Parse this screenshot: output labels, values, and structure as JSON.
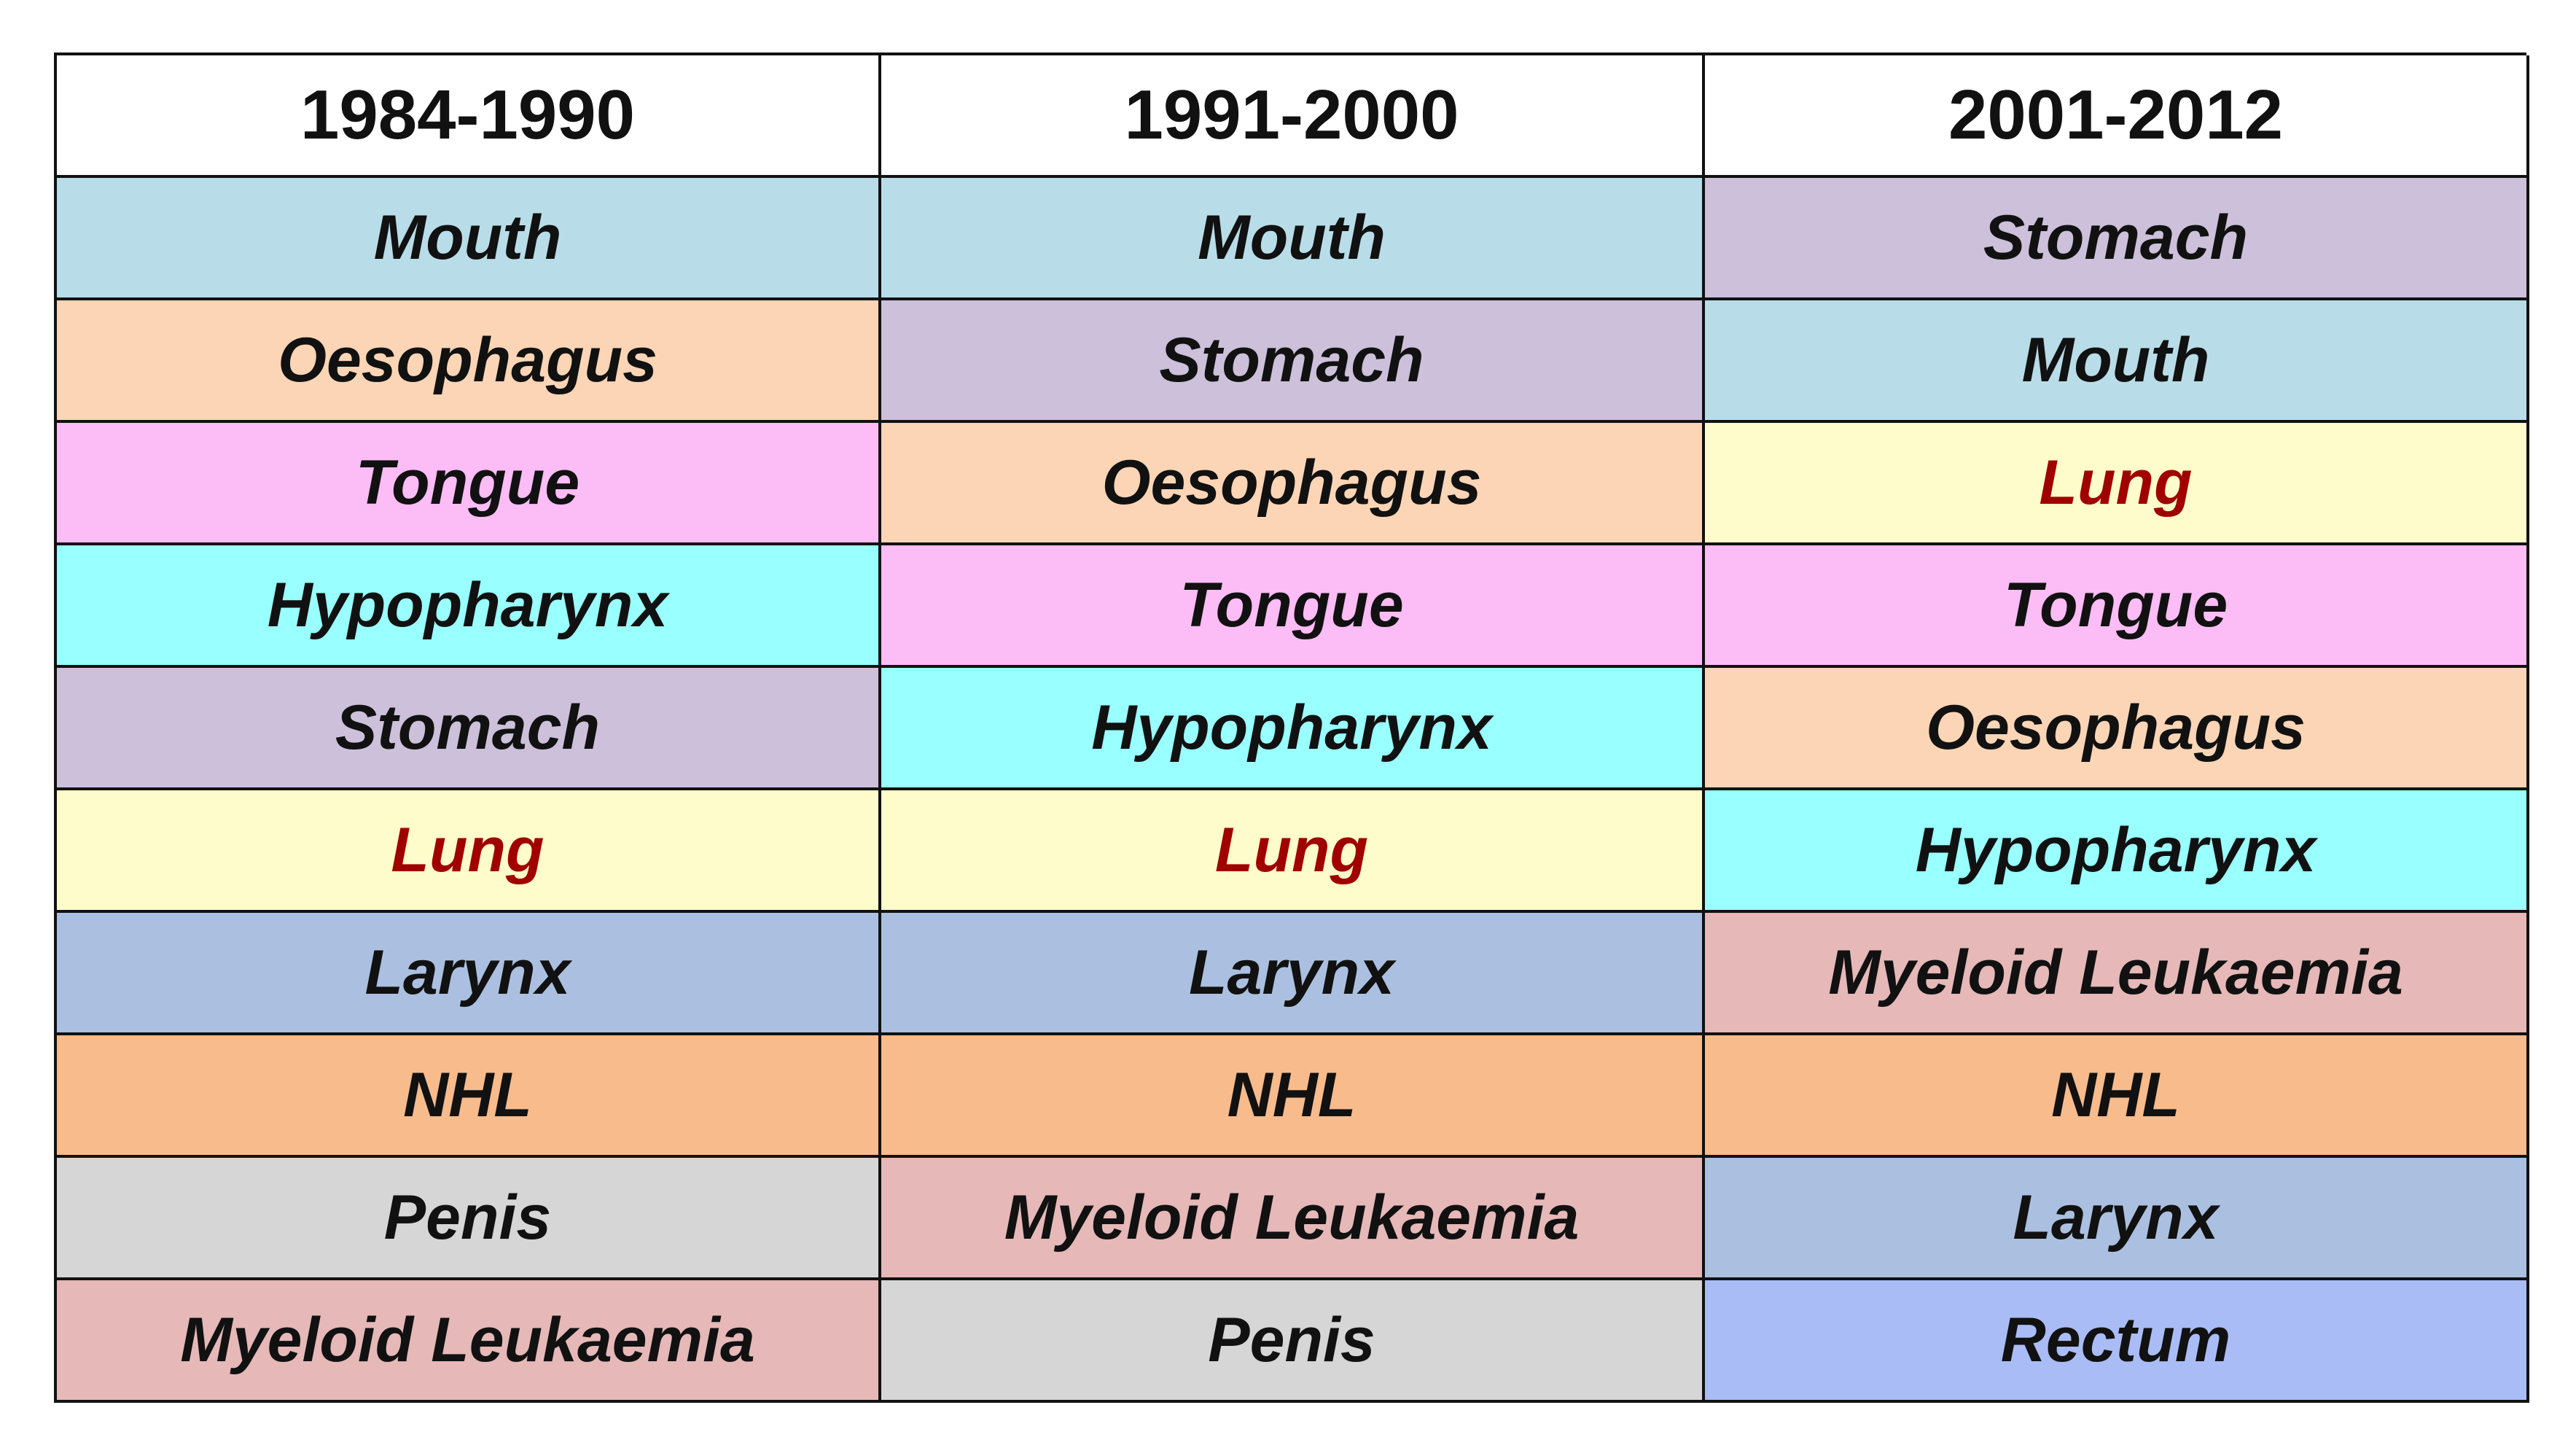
{
  "table": {
    "headers": [
      "1984-1990",
      "1991-2000",
      "2001-2012"
    ],
    "rows": [
      [
        "Mouth",
        "Mouth",
        "Stomach"
      ],
      [
        "Oesophagus",
        "Stomach",
        "Mouth"
      ],
      [
        "Tongue",
        "Oesophagus",
        "Lung"
      ],
      [
        "Hypopharynx",
        "Tongue",
        "Tongue"
      ],
      [
        "Stomach",
        "Hypopharynx",
        "Oesophagus"
      ],
      [
        "Lung",
        "Lung",
        "Hypopharynx"
      ],
      [
        "Larynx",
        "Larynx",
        "Myeloid Leukaemia"
      ],
      [
        "NHL",
        "NHL",
        "NHL"
      ],
      [
        "Penis",
        "Myeloid Leukaemia",
        "Larynx"
      ],
      [
        "Myeloid Leukaemia",
        "Penis",
        "Rectum"
      ]
    ]
  },
  "colors": {
    "Mouth": "#b8dde8",
    "Oesophagus": "#fbd5b5",
    "Tongue": "#fcbcf5",
    "Hypopharynx": "#99ffff",
    "Stomach": "#ccc0da",
    "Lung": "#fdfcca",
    "Larynx": "#abc0e0",
    "NHL": "#f7bb8c",
    "Penis": "#d6d6d6",
    "Myeloid Leukaemia": "#e6b8b8",
    "Rectum": "#a9bcf5",
    "highlight_text": "#a00000"
  },
  "highlighted": [
    "Lung"
  ]
}
